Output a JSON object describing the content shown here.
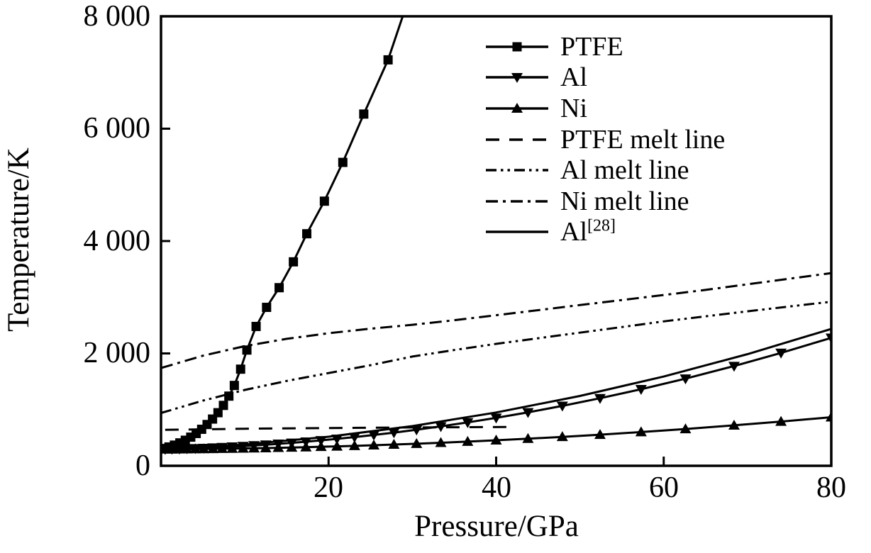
{
  "figure": {
    "background": "#ffffff",
    "ink": "#000000"
  },
  "legend": {
    "entries": [
      {
        "label": "PTFE",
        "sup": ""
      },
      {
        "label": "Al",
        "sup": ""
      },
      {
        "label": "Ni",
        "sup": ""
      },
      {
        "label": "PTFE melt line",
        "sup": ""
      },
      {
        "label": "Al melt line",
        "sup": ""
      },
      {
        "label": "Ni melt line",
        "sup": ""
      },
      {
        "label": "Al",
        "sup": "[28]"
      }
    ]
  },
  "chart_data": {
    "type": "line",
    "title": "",
    "xlabel": "Pressure/GPa",
    "ylabel": "Temperature/K",
    "xlim": [
      0,
      80
    ],
    "ylim": [
      0,
      8000
    ],
    "x_ticks": [
      20,
      40,
      60,
      80
    ],
    "x_tick_labels": [
      "20",
      "40",
      "60",
      "80"
    ],
    "y_ticks": [
      0,
      2000,
      4000,
      6000,
      8000
    ],
    "y_tick_labels": [
      "0",
      "2 000",
      "4 000",
      "6 000",
      "8 000"
    ],
    "grid": false,
    "legend_position": "upper-right-inside",
    "series": [
      {
        "name": "PTFE",
        "marker": "square",
        "dash": "solid",
        "points": [
          [
            0.3,
            308
          ],
          [
            0.95,
            335
          ],
          [
            1.6,
            368
          ],
          [
            2.25,
            408
          ],
          [
            2.9,
            455
          ],
          [
            3.55,
            510
          ],
          [
            4.2,
            575
          ],
          [
            4.85,
            650
          ],
          [
            5.5,
            735
          ],
          [
            6.15,
            832
          ],
          [
            6.8,
            945
          ],
          [
            7.45,
            1075
          ],
          [
            8.1,
            1240
          ],
          [
            8.75,
            1430
          ],
          [
            9.5,
            1720
          ],
          [
            10.25,
            2060
          ],
          [
            11.35,
            2480
          ],
          [
            12.6,
            2820
          ],
          [
            14.1,
            3170
          ],
          [
            15.8,
            3630
          ],
          [
            17.4,
            4130
          ],
          [
            19.5,
            4710
          ],
          [
            21.7,
            5400
          ],
          [
            24.2,
            6260
          ],
          [
            27.1,
            7225
          ],
          [
            29.3,
            8200
          ]
        ]
      },
      {
        "name": "Al",
        "marker": "triangle-down",
        "dash": "solid",
        "points": [
          [
            0.5,
            295
          ],
          [
            1.3,
            298
          ],
          [
            2.2,
            301
          ],
          [
            3.1,
            306
          ],
          [
            4.1,
            311
          ],
          [
            5.1,
            316
          ],
          [
            6.2,
            323
          ],
          [
            7.3,
            331
          ],
          [
            8.5,
            340
          ],
          [
            9.8,
            350
          ],
          [
            11.1,
            362
          ],
          [
            12.5,
            375
          ],
          [
            14,
            391
          ],
          [
            15.6,
            409
          ],
          [
            17.3,
            429
          ],
          [
            19.1,
            453
          ],
          [
            21,
            479
          ],
          [
            23.1,
            511
          ],
          [
            25.4,
            549
          ],
          [
            27.8,
            591
          ],
          [
            30.5,
            642
          ],
          [
            33.4,
            701
          ],
          [
            36.6,
            772
          ],
          [
            40,
            853
          ],
          [
            43.8,
            951
          ],
          [
            47.9,
            1066
          ],
          [
            52.4,
            1202
          ],
          [
            57.3,
            1363
          ],
          [
            62.6,
            1551
          ],
          [
            68.4,
            1775
          ],
          [
            74,
            2009
          ],
          [
            80,
            2277
          ]
        ]
      },
      {
        "name": "Ni",
        "marker": "triangle-up",
        "dash": "solid",
        "points": [
          [
            0.5,
            294
          ],
          [
            1.3,
            294
          ],
          [
            2.2,
            295
          ],
          [
            3.1,
            297
          ],
          [
            4.1,
            298
          ],
          [
            5.1,
            300
          ],
          [
            6.2,
            302
          ],
          [
            7.3,
            304
          ],
          [
            8.5,
            306
          ],
          [
            9.8,
            309
          ],
          [
            11.1,
            313
          ],
          [
            12.5,
            316
          ],
          [
            14,
            321
          ],
          [
            15.6,
            326
          ],
          [
            17.3,
            332
          ],
          [
            19.1,
            339
          ],
          [
            21,
            346
          ],
          [
            23.1,
            355
          ],
          [
            25.4,
            366
          ],
          [
            27.8,
            378
          ],
          [
            30.5,
            393
          ],
          [
            33.4,
            410
          ],
          [
            36.6,
            430
          ],
          [
            40,
            454
          ],
          [
            43.8,
            482
          ],
          [
            47.9,
            515
          ],
          [
            52.4,
            554
          ],
          [
            57.3,
            601
          ],
          [
            62.6,
            655
          ],
          [
            68.4,
            720
          ],
          [
            74,
            787
          ],
          [
            80,
            864
          ]
        ]
      },
      {
        "name": "PTFE melt line",
        "marker": "none",
        "dash": "dashed",
        "points": [
          [
            0.5,
            640
          ],
          [
            10,
            660
          ],
          [
            20,
            673
          ],
          [
            30,
            683
          ],
          [
            42,
            692
          ]
        ]
      },
      {
        "name": "Al melt line",
        "marker": "none",
        "dash": "dash-dot-dot",
        "points": [
          [
            0,
            940
          ],
          [
            5,
            1160
          ],
          [
            10,
            1350
          ],
          [
            15,
            1510
          ],
          [
            20,
            1650
          ],
          [
            25,
            1790
          ],
          [
            30,
            1945
          ],
          [
            35,
            2060
          ],
          [
            40,
            2170
          ],
          [
            45,
            2270
          ],
          [
            50,
            2370
          ],
          [
            55,
            2470
          ],
          [
            60,
            2570
          ],
          [
            65,
            2660
          ],
          [
            70,
            2750
          ],
          [
            75,
            2835
          ],
          [
            80,
            2920
          ]
        ]
      },
      {
        "name": "Ni melt line",
        "marker": "none",
        "dash": "dash-dot",
        "points": [
          [
            0,
            1740
          ],
          [
            5,
            1960
          ],
          [
            10,
            2130
          ],
          [
            15,
            2260
          ],
          [
            20,
            2360
          ],
          [
            25,
            2440
          ],
          [
            30,
            2510
          ],
          [
            35,
            2590
          ],
          [
            40,
            2680
          ],
          [
            45,
            2770
          ],
          [
            50,
            2860
          ],
          [
            55,
            2950
          ],
          [
            60,
            3040
          ],
          [
            65,
            3130
          ],
          [
            70,
            3230
          ],
          [
            75,
            3330
          ],
          [
            80,
            3430
          ]
        ]
      },
      {
        "name": "Al[28]",
        "marker": "none",
        "dash": "solid",
        "points": [
          [
            0,
            293
          ],
          [
            10,
            379
          ],
          [
            20,
            517
          ],
          [
            30,
            707
          ],
          [
            40,
            949
          ],
          [
            50,
            1243
          ],
          [
            60,
            1589
          ],
          [
            70,
            1987
          ],
          [
            80,
            2437
          ]
        ]
      }
    ]
  }
}
